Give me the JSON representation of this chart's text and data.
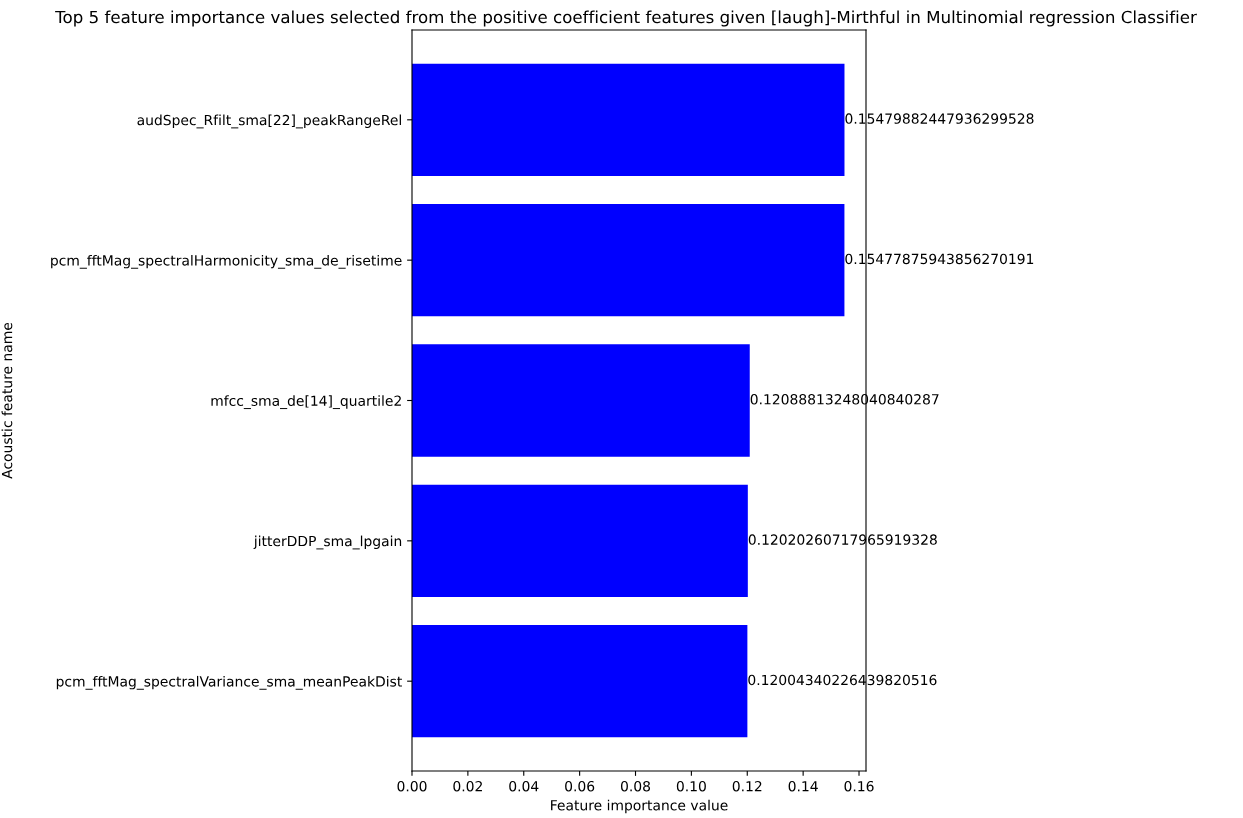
{
  "chart_data": {
    "type": "bar",
    "orientation": "horizontal",
    "title": "Top 5 feature importance values selected from the positive coefficient features given [laugh]-Mirthful in Multinomial regression Classifier",
    "xlabel": "Feature importance value",
    "ylabel": "Acoustic feature name",
    "categories": [
      "audSpec_Rfilt_sma[22]_peakRangeRel",
      "pcm_fftMag_spectralHarmonicity_sma_de_risetime",
      "mfcc_sma_de[14]_quartile2",
      "jitterDDP_sma_lpgain",
      "pcm_fftMag_spectralVariance_sma_meanPeakDist"
    ],
    "values": [
      0.154798824479363,
      0.1547787594385627,
      0.1208881324804084,
      0.1202026071796592,
      0.1200434022643982
    ],
    "value_labels": [
      "0.15479882447936299528",
      "0.15477875943856270191",
      "0.12088813248040840287",
      "0.12020260717965919328",
      "0.12004340226439820516"
    ],
    "color": "#0000ff",
    "xlim": [
      0,
      0.1625
    ],
    "xticks": [
      {
        "value": 0,
        "label": "0.00"
      },
      {
        "value": 0.02,
        "label": "0.02"
      },
      {
        "value": 0.04,
        "label": "0.04"
      },
      {
        "value": 0.06,
        "label": "0.06"
      },
      {
        "value": 0.08,
        "label": "0.08"
      },
      {
        "value": 0.1,
        "label": "0.10"
      },
      {
        "value": 0.12,
        "label": "0.12"
      },
      {
        "value": 0.14,
        "label": "0.14"
      },
      {
        "value": 0.16,
        "label": "0.16"
      }
    ],
    "grid": false
  }
}
